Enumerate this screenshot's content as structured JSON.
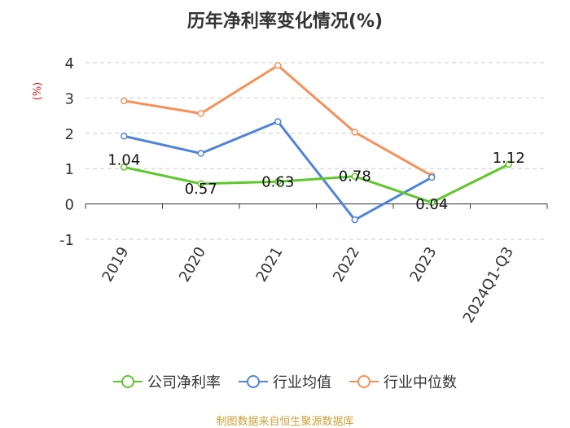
{
  "chart_data": {
    "type": "line",
    "title": "历年净利率变化情况(%)",
    "ylabel": "(%)",
    "xlabel": "",
    "categories": [
      "2019",
      "2020",
      "2021",
      "2022",
      "2023",
      "2024Q1-Q3"
    ],
    "ylim": [
      -1,
      4
    ],
    "yticks": [
      "4",
      "3",
      "2",
      "1",
      "0",
      "-1"
    ],
    "grid": true,
    "legend_position": "bottom",
    "series": [
      {
        "name": "公司净利率",
        "color": "#5ec72c",
        "values": [
          1.04,
          0.57,
          0.63,
          0.78,
          0.04,
          1.12
        ],
        "labels": [
          "1.04",
          "0.57",
          "0.63",
          "0.78",
          "0.04",
          "1.12"
        ],
        "show_labels": true
      },
      {
        "name": "行业均值",
        "color": "#4f83dc",
        "values": [
          1.92,
          1.43,
          2.33,
          -0.45,
          0.75,
          null
        ],
        "show_labels": false
      },
      {
        "name": "行业中位数",
        "color": "#f79058",
        "values": [
          2.92,
          2.56,
          3.92,
          2.03,
          0.8,
          null
        ],
        "show_labels": false
      }
    ],
    "source": "制图数据来自恒生聚源数据库"
  }
}
